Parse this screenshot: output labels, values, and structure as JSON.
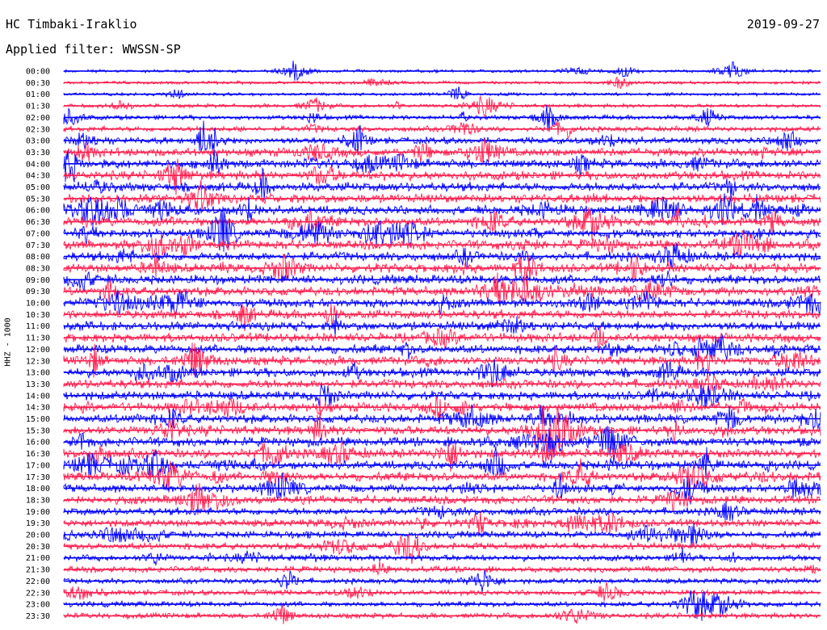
{
  "header": {
    "station": "HC Timbaki-Iraklio",
    "date": "2019-09-27",
    "filter": "Applied filter: WWSSN-SP"
  },
  "chart_data": {
    "type": "line",
    "title": "HC Timbaki-Iraklio",
    "subtitle": "Applied filter: WWSSN-SP",
    "ylabel": "HHZ - 1000",
    "date": "2019-09-27",
    "grid": false,
    "series_colors": [
      "#0000ff",
      "#ff1d4e"
    ],
    "trace_labels": [
      "00:00",
      "00:30",
      "01:00",
      "01:30",
      "02:00",
      "02:30",
      "03:00",
      "03:30",
      "04:00",
      "04:30",
      "05:00",
      "05:30",
      "06:00",
      "06:30",
      "07:00",
      "07:30",
      "08:00",
      "08:30",
      "09:00",
      "09:30",
      "10:00",
      "10:30",
      "11:00",
      "11:30",
      "12:00",
      "12:30",
      "13:00",
      "13:30",
      "14:00",
      "14:30",
      "15:00",
      "15:30",
      "16:00",
      "16:30",
      "17:00",
      "17:30",
      "18:00",
      "18:30",
      "19:00",
      "19:30",
      "20:00",
      "20:30",
      "21:00",
      "21:30",
      "22:00",
      "22:30",
      "23:00",
      "23:30"
    ],
    "noise_levels": [
      0.2,
      0.2,
      0.2,
      0.3,
      0.4,
      0.5,
      0.7,
      0.9,
      1.0,
      1.0,
      1.0,
      1.0,
      1.0,
      1.0,
      1.0,
      1.0,
      1.0,
      1.0,
      1.0,
      1.0,
      1.0,
      1.0,
      1.0,
      1.0,
      1.0,
      1.0,
      1.0,
      1.0,
      1.0,
      1.0,
      1.0,
      1.0,
      1.0,
      1.0,
      1.0,
      1.0,
      0.9,
      0.9,
      0.8,
      0.8,
      0.7,
      0.7,
      0.6,
      0.6,
      0.5,
      0.5,
      0.5,
      0.5
    ]
  }
}
